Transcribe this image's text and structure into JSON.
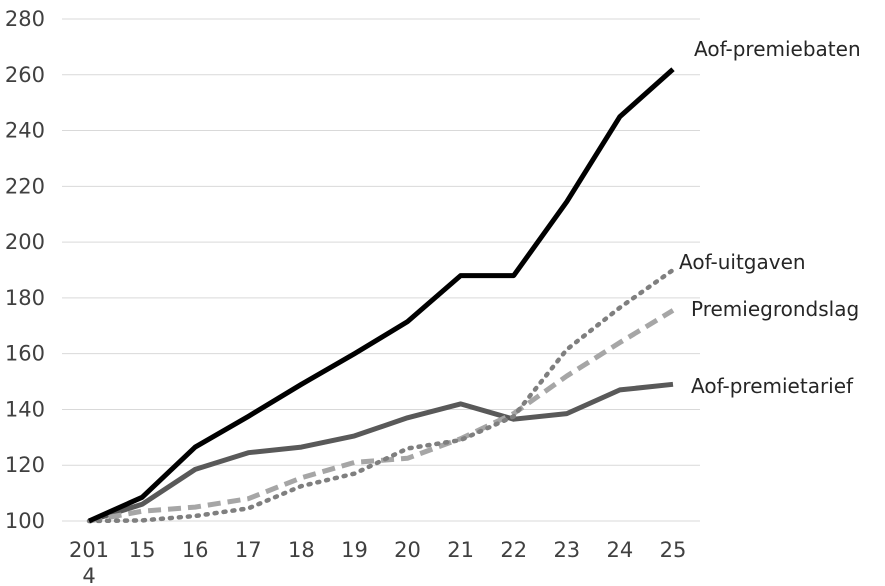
{
  "chart_data": {
    "type": "line",
    "title": "",
    "xlabel": "",
    "ylabel": "",
    "categories": [
      "201\n4",
      "15",
      "16",
      "17",
      "18",
      "19",
      "20",
      "21",
      "22",
      "23",
      "24",
      "25"
    ],
    "ylim": [
      100,
      280
    ],
    "yticks": [
      100,
      120,
      140,
      160,
      180,
      200,
      220,
      240,
      260,
      280
    ],
    "grid": true,
    "legend": "inline-right",
    "series": [
      {
        "name": "Aof-premiebaten",
        "values": [
          100,
          108.5,
          126.5,
          137.5,
          149,
          160,
          171.5,
          188,
          188,
          214.5,
          245,
          262
        ],
        "color": "#000000",
        "style": "solid"
      },
      {
        "name": "Aof-uitgaven",
        "values": [
          100,
          100.2,
          101.8,
          104.5,
          112.5,
          117,
          126,
          129,
          137.5,
          161.5,
          176.5,
          190
        ],
        "color": "#7f7f7f",
        "style": "dotted"
      },
      {
        "name": "Premiegrondslag",
        "values": [
          100,
          103.5,
          105,
          108,
          115.5,
          121,
          122.5,
          129.5,
          138.5,
          152,
          164,
          175.5
        ],
        "color": "#a6a6a6",
        "style": "dashed"
      },
      {
        "name": "Aof-premietarief",
        "values": [
          100,
          106,
          118.5,
          124.5,
          126.5,
          130.5,
          137,
          142,
          136.5,
          138.5,
          147,
          149
        ],
        "color": "#595959",
        "style": "solid"
      }
    ]
  }
}
